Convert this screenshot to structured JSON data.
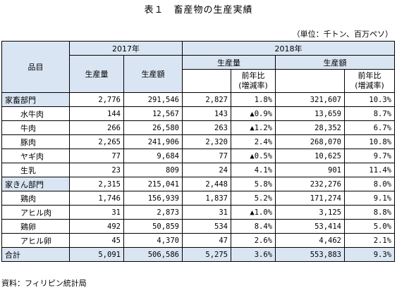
{
  "title": "表１　畜産物の生産実績",
  "unit": "（単位：千トン、百万ペソ）",
  "source": "資料：フィリピン統計局",
  "header": {
    "item": "品目",
    "year_2017": "2017年",
    "year_2018": "2018年",
    "production_volume": "生産量",
    "production_value": "生産額",
    "yoy_line1": "前年比",
    "yoy_line2": "(増減率)"
  },
  "rows": [
    {
      "name": "家畜部門",
      "type": "category",
      "v2017": "2,776",
      "val2017": "291,546",
      "v2018": "2,827",
      "vyoy": "1.8%",
      "val2018": "321,607",
      "valyoy": "10.3%"
    },
    {
      "name": "水牛肉",
      "type": "sub",
      "v2017": "144",
      "val2017": "12,567",
      "v2018": "143",
      "vyoy": "▲0.9%",
      "val2018": "13,659",
      "valyoy": "8.7%"
    },
    {
      "name": "牛肉",
      "type": "sub",
      "v2017": "266",
      "val2017": "26,580",
      "v2018": "263",
      "vyoy": "▲1.2%",
      "val2018": "28,352",
      "valyoy": "6.7%"
    },
    {
      "name": "豚肉",
      "type": "sub",
      "v2017": "2,265",
      "val2017": "241,906",
      "v2018": "2,320",
      "vyoy": "2.4%",
      "val2018": "268,070",
      "valyoy": "10.8%"
    },
    {
      "name": "ヤギ肉",
      "type": "sub",
      "v2017": "77",
      "val2017": "9,684",
      "v2018": "77",
      "vyoy": "▲0.5%",
      "val2018": "10,625",
      "valyoy": "9.7%"
    },
    {
      "name": "生乳",
      "type": "sub",
      "v2017": "23",
      "val2017": "809",
      "v2018": "24",
      "vyoy": "4.1%",
      "val2018": "901",
      "valyoy": "11.4%"
    },
    {
      "name": "家きん部門",
      "type": "category",
      "v2017": "2,315",
      "val2017": "215,041",
      "v2018": "2,448",
      "vyoy": "5.8%",
      "val2018": "232,276",
      "valyoy": "8.0%"
    },
    {
      "name": "鶏肉",
      "type": "sub",
      "v2017": "1,746",
      "val2017": "156,939",
      "v2018": "1,837",
      "vyoy": "5.2%",
      "val2018": "171,274",
      "valyoy": "9.1%"
    },
    {
      "name": "アヒル肉",
      "type": "sub",
      "v2017": "31",
      "val2017": "2,873",
      "v2018": "31",
      "vyoy": "▲1.0%",
      "val2018": "3,125",
      "valyoy": "8.8%"
    },
    {
      "name": "鶏卵",
      "type": "sub",
      "v2017": "492",
      "val2017": "50,859",
      "v2018": "534",
      "vyoy": "8.4%",
      "val2018": "53,414",
      "valyoy": "5.0%"
    },
    {
      "name": "アヒル卵",
      "type": "sub",
      "v2017": "45",
      "val2017": "4,370",
      "v2018": "47",
      "vyoy": "2.6%",
      "val2018": "4,462",
      "valyoy": "2.1%"
    },
    {
      "name": "合計",
      "type": "total",
      "v2017": "5,091",
      "val2017": "506,586",
      "v2018": "5,275",
      "vyoy": "3.6%",
      "val2018": "553,883",
      "valyoy": "9.3%"
    }
  ],
  "colors": {
    "header_fill": "#dae5f3",
    "border": "#000000"
  }
}
